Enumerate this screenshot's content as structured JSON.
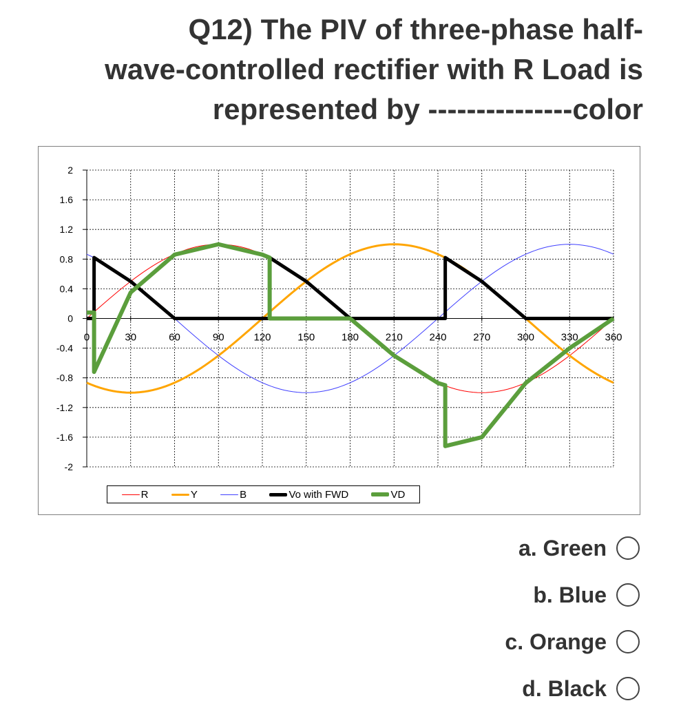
{
  "question": {
    "lines": [
      "Q12) The PIV of three-phase half-",
      "wave-controlled rectifier with R Load is",
      "represented by ---------------color"
    ]
  },
  "options": [
    {
      "label": "a. Green"
    },
    {
      "label": "b. Blue"
    },
    {
      "label": "c. Orange"
    },
    {
      "label": "d. Black"
    }
  ],
  "chart_data": {
    "type": "line",
    "title": "",
    "xlabel": "",
    "ylabel": "",
    "xlim": [
      0,
      360
    ],
    "ylim": [
      -2,
      2
    ],
    "grid": true,
    "legend_position": "bottom",
    "x_ticks": [
      0,
      30,
      60,
      90,
      120,
      150,
      180,
      210,
      240,
      270,
      300,
      330,
      360
    ],
    "x_tick_labels": [
      "0",
      "30",
      "60",
      "90",
      "120",
      "150",
      "180",
      "210",
      "240",
      "270",
      "300",
      "330",
      "360"
    ],
    "y_ticks": [
      2,
      1.6,
      1.2,
      0.8,
      0.4,
      0,
      -0.4,
      -0.8,
      -1.2,
      -1.6,
      -2
    ],
    "y_tick_labels": [
      "2",
      "1.6",
      "1.2",
      "0.8",
      "0.4",
      "0",
      "-0.4",
      "-0.8",
      "-1.2",
      "-1.6",
      "-2"
    ],
    "series": [
      {
        "name": "R",
        "color": "#ff0000",
        "x": [
          0,
          30,
          60,
          90,
          120,
          150,
          180,
          210,
          240,
          270,
          300,
          330,
          360
        ],
        "values": [
          0.0,
          0.5,
          0.87,
          1.0,
          0.87,
          0.5,
          0.0,
          -0.5,
          -0.87,
          -1.0,
          -0.87,
          -0.5,
          0.0
        ]
      },
      {
        "name": "Y",
        "color": "#ffa500",
        "x": [
          0,
          30,
          60,
          90,
          120,
          150,
          180,
          210,
          240,
          270,
          300,
          330,
          360
        ],
        "values": [
          -0.87,
          -1.0,
          -0.87,
          -0.5,
          0.0,
          0.5,
          0.87,
          1.0,
          0.87,
          0.5,
          0.0,
          -0.5,
          -0.87
        ]
      },
      {
        "name": "B",
        "color": "#4040ff",
        "x": [
          0,
          30,
          60,
          90,
          120,
          150,
          180,
          210,
          240,
          270,
          300,
          330,
          360
        ],
        "values": [
          0.87,
          0.5,
          0.0,
          -0.5,
          -0.87,
          -1.0,
          -0.87,
          -0.5,
          0.0,
          0.5,
          0.87,
          1.0,
          0.87
        ]
      },
      {
        "name": "Vo with FWD",
        "color": "#000000",
        "x": [
          0,
          5,
          5,
          30,
          60,
          60,
          125,
          125,
          150,
          180,
          180,
          245,
          245,
          270,
          300,
          300,
          360
        ],
        "values": [
          0,
          0,
          0.82,
          0.5,
          0.0,
          0.0,
          0.0,
          0.82,
          0.5,
          0.0,
          0.0,
          0.0,
          0.82,
          0.5,
          0.0,
          0.0,
          0.0
        ]
      },
      {
        "name": "VD",
        "color": "#5b9e3c",
        "x": [
          0,
          5,
          5,
          30,
          60,
          90,
          120,
          125,
          125,
          180,
          210,
          240,
          245,
          245,
          270,
          300,
          330,
          360
        ],
        "values": [
          0.08,
          0.08,
          -0.72,
          0.35,
          0.86,
          1.0,
          0.86,
          0.82,
          0.0,
          0.0,
          -0.5,
          -0.87,
          -0.9,
          -1.72,
          -1.6,
          -0.87,
          -0.4,
          0.0
        ]
      }
    ]
  }
}
